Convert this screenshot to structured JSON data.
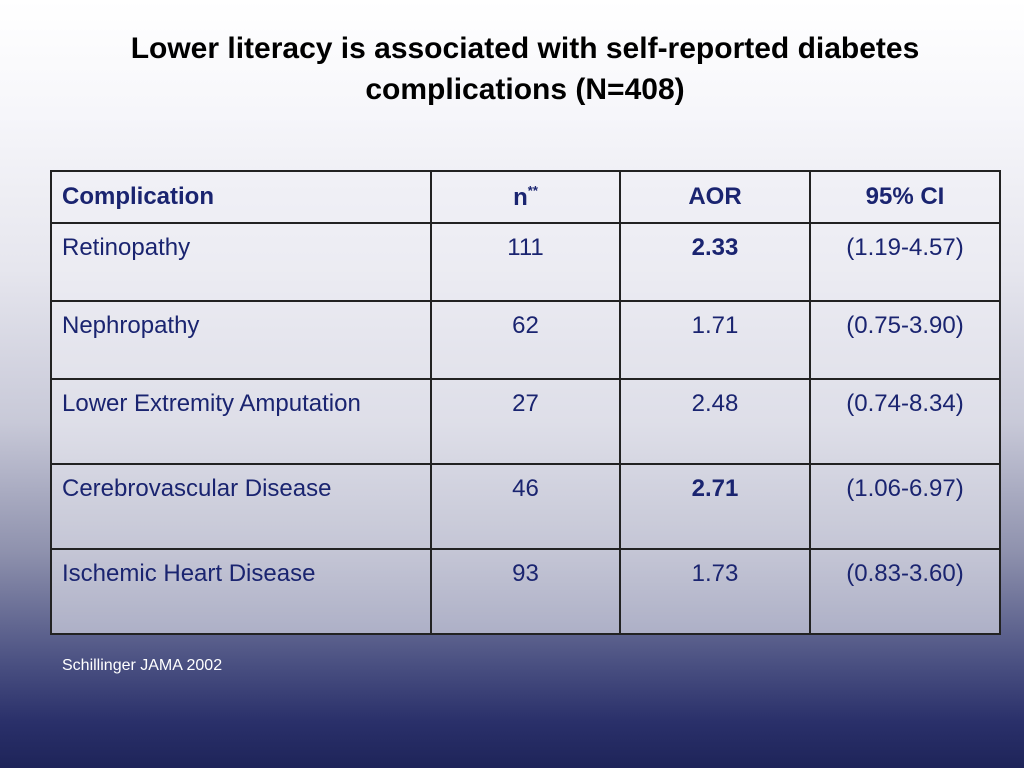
{
  "title": {
    "line1": "Lower literacy is associated with self-reported diabetes",
    "line2": "complications (N=408)"
  },
  "table": {
    "headers": {
      "complication": "Complication",
      "n": "n",
      "n_sup": "**",
      "aor": "AOR",
      "ci": "95% CI"
    },
    "rows": [
      {
        "complication": "Retinopathy",
        "n": "111",
        "aor": "2.33",
        "ci": "(1.19-4.57)",
        "aor_bold": true
      },
      {
        "complication": "Nephropathy",
        "n": "62",
        "aor": "1.71",
        "ci": "(0.75-3.90)",
        "aor_bold": false
      },
      {
        "complication": "Lower Extremity Amputation",
        "n": "27",
        "aor": "2.48",
        "ci": "(0.74-8.34)",
        "aor_bold": false
      },
      {
        "complication": "Cerebrovascular Disease",
        "n": "46",
        "aor": "2.71",
        "ci": "(1.06-6.97)",
        "aor_bold": true
      },
      {
        "complication": "Ischemic Heart Disease",
        "n": "93",
        "aor": "1.73",
        "ci": "(0.83-3.60)",
        "aor_bold": false
      }
    ]
  },
  "source": "Schillinger JAMA 2002",
  "colors": {
    "table_text": "#1a2470",
    "background_bottom": "#1e2459"
  }
}
